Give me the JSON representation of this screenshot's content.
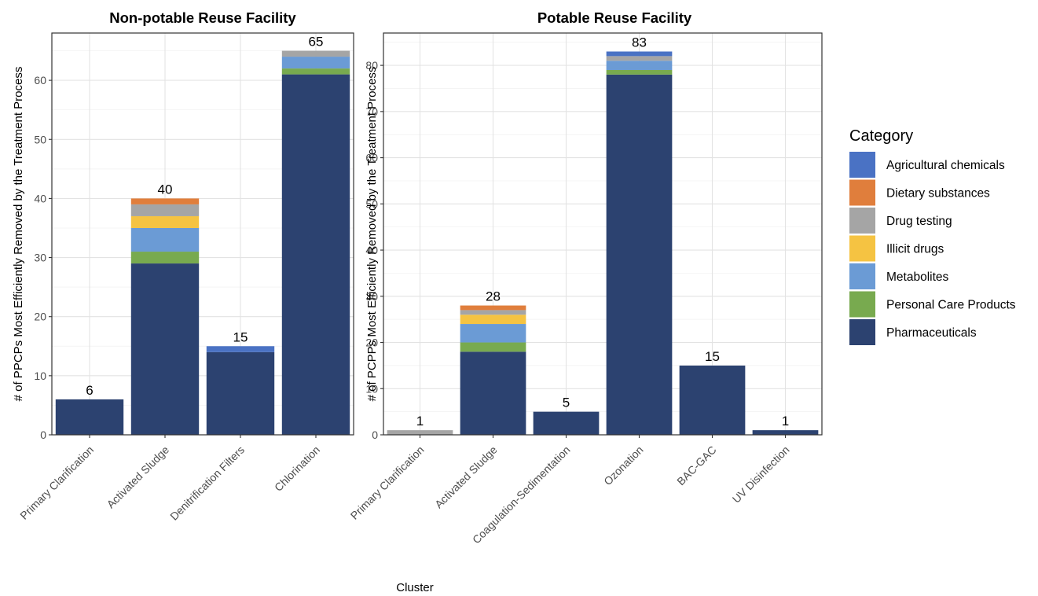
{
  "colors": {
    "Agricultural chemicals": "#4a72c4",
    "Dietary substances": "#e07e3c",
    "Drug testing": "#a5a5a5",
    "Illicit drugs": "#f5c342",
    "Metabolites": "#6b9bd5",
    "Personal Care Products": "#78aa4f",
    "Pharmaceuticals": "#2c4270"
  },
  "chart_data": [
    {
      "type": "bar",
      "stacked": true,
      "title": "Non-potable Reuse Facility",
      "ylabel": "# of PPCPs Most Efficiently Removed by the Treatment Process",
      "xlabel": "",
      "ylim": [
        0,
        68
      ],
      "yticks": [
        0,
        10,
        20,
        30,
        40,
        50,
        60
      ],
      "grid": true,
      "categories": [
        "Primary Clarification",
        "Activated Sludge",
        "Denitrification Filters",
        "Chlorination"
      ],
      "totals": [
        "6",
        "40",
        "15",
        "65"
      ],
      "series": [
        {
          "name": "Pharmaceuticals",
          "values": [
            6,
            29,
            14,
            61
          ]
        },
        {
          "name": "Personal Care Products",
          "values": [
            0,
            2,
            0,
            1
          ]
        },
        {
          "name": "Metabolites",
          "values": [
            0,
            4,
            0,
            2
          ]
        },
        {
          "name": "Illicit drugs",
          "values": [
            0,
            2,
            0,
            0
          ]
        },
        {
          "name": "Drug testing",
          "values": [
            0,
            2,
            0,
            1
          ]
        },
        {
          "name": "Dietary substances",
          "values": [
            0,
            1,
            0,
            0
          ]
        },
        {
          "name": "Agricultural chemicals",
          "values": [
            0,
            0,
            1,
            0
          ]
        }
      ]
    },
    {
      "type": "bar",
      "stacked": true,
      "title": "Potable Reuse Facility",
      "ylabel": "# of PCPPs Most Efficiently Removed by the Treatment Process",
      "xlabel": "Cluster",
      "ylim": [
        0,
        87
      ],
      "yticks": [
        0,
        10,
        20,
        30,
        40,
        50,
        60,
        70,
        80
      ],
      "grid": true,
      "categories": [
        "Primary Clarification",
        "Activated Sludge",
        "Coagulation-Sedimentation",
        "Ozonation",
        "BAC-GAC",
        "UV Disinfection"
      ],
      "totals": [
        "1",
        "28",
        "5",
        "83",
        "15",
        "1"
      ],
      "series": [
        {
          "name": "Pharmaceuticals",
          "values": [
            0,
            18,
            5,
            78,
            15,
            1
          ]
        },
        {
          "name": "Personal Care Products",
          "values": [
            0,
            2,
            0,
            1,
            0,
            0
          ]
        },
        {
          "name": "Metabolites",
          "values": [
            0,
            4,
            0,
            2,
            0,
            0
          ]
        },
        {
          "name": "Illicit drugs",
          "values": [
            0,
            2,
            0,
            0,
            0,
            0
          ]
        },
        {
          "name": "Drug testing",
          "values": [
            1,
            1,
            0,
            1,
            0,
            0
          ]
        },
        {
          "name": "Dietary substances",
          "values": [
            0,
            1,
            0,
            0,
            0,
            0
          ]
        },
        {
          "name": "Agricultural chemicals",
          "values": [
            0,
            0,
            0,
            1,
            0,
            0
          ]
        }
      ]
    }
  ],
  "legend": {
    "title": "Category",
    "position": "right",
    "items": [
      "Agricultural chemicals",
      "Dietary substances",
      "Drug testing",
      "Illicit drugs",
      "Metabolites",
      "Personal Care Products",
      "Pharmaceuticals"
    ]
  }
}
